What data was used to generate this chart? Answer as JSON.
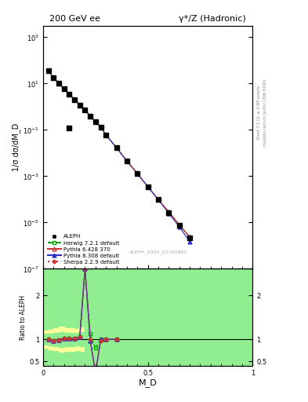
{
  "title_left": "200 GeV ee",
  "title_right": "γ*/Z (Hadronic)",
  "xlabel": "M_D",
  "ylabel_main": "1/σ dσ/dM_D",
  "ylabel_ratio": "Ratio to ALEPH",
  "watermark": "ALEPH_2004_S5765862",
  "right_label": "Rivet 3.1.10, ≥ 2.4M events",
  "right_label2": "mcplots.cern.ch [arXiv:1306.3436]",
  "aleph_x": [
    0.025,
    0.05,
    0.075,
    0.1,
    0.125,
    0.15,
    0.175,
    0.2,
    0.225,
    0.25,
    0.275,
    0.3,
    0.35,
    0.4,
    0.45,
    0.5,
    0.55,
    0.6,
    0.65,
    0.7
  ],
  "aleph_y": [
    35,
    18,
    10,
    6.0,
    3.5,
    2.0,
    1.2,
    0.7,
    0.4,
    0.22,
    0.13,
    0.06,
    0.017,
    0.0045,
    0.0013,
    0.00035,
    9.5e-05,
    2.7e-05,
    7.5e-06,
    2.1e-06
  ],
  "aleph_outlier_x": [
    0.125
  ],
  "aleph_outlier_y": [
    0.12
  ],
  "herwig_x": [
    0.025,
    0.05,
    0.075,
    0.1,
    0.125,
    0.15,
    0.175,
    0.2,
    0.225,
    0.25,
    0.275,
    0.3,
    0.35,
    0.4,
    0.45,
    0.5,
    0.55,
    0.6,
    0.65,
    0.7
  ],
  "herwig_y": [
    35,
    18,
    10,
    6.0,
    3.5,
    2.0,
    1.2,
    0.7,
    0.4,
    0.22,
    0.13,
    0.06,
    0.017,
    0.0045,
    0.0013,
    0.00035,
    9.5e-05,
    2.8e-05,
    7.8e-06,
    2.3e-06
  ],
  "pythia6_x": [
    0.025,
    0.05,
    0.075,
    0.1,
    0.125,
    0.15,
    0.175,
    0.2,
    0.225,
    0.25,
    0.275,
    0.3,
    0.35,
    0.4,
    0.45,
    0.5,
    0.55,
    0.6,
    0.65,
    0.7
  ],
  "pythia6_y": [
    35,
    18,
    10,
    6.0,
    3.5,
    2.0,
    1.2,
    0.7,
    0.4,
    0.22,
    0.13,
    0.06,
    0.017,
    0.0045,
    0.0013,
    0.00035,
    9.5e-05,
    2.9e-05,
    8e-06,
    2.4e-06
  ],
  "pythia8_x": [
    0.025,
    0.05,
    0.075,
    0.1,
    0.125,
    0.15,
    0.175,
    0.2,
    0.225,
    0.25,
    0.275,
    0.3,
    0.35,
    0.4,
    0.45,
    0.5,
    0.55,
    0.6,
    0.65,
    0.7
  ],
  "pythia8_y": [
    35,
    18,
    10,
    6.0,
    3.5,
    2.0,
    1.2,
    0.7,
    0.4,
    0.22,
    0.13,
    0.06,
    0.017,
    0.0045,
    0.0013,
    0.00035,
    9.5e-05,
    2.5e-05,
    6.5e-06,
    1.5e-06
  ],
  "sherpa_x": [
    0.025,
    0.05,
    0.075,
    0.1,
    0.125,
    0.15,
    0.175,
    0.2,
    0.225,
    0.25,
    0.275,
    0.3,
    0.35,
    0.4,
    0.45,
    0.5,
    0.55,
    0.6,
    0.65,
    0.7
  ],
  "sherpa_y": [
    35,
    18,
    10,
    6.0,
    3.5,
    2.0,
    1.2,
    0.7,
    0.4,
    0.22,
    0.13,
    0.06,
    0.017,
    0.0045,
    0.0013,
    0.00035,
    9.5e-05,
    2.8e-05,
    7.8e-06,
    2.3e-06
  ],
  "ratio_x": [
    0.025,
    0.05,
    0.075,
    0.1,
    0.125,
    0.15,
    0.175,
    0.2,
    0.225,
    0.25,
    0.275,
    0.3,
    0.35
  ],
  "herwig_ratio": [
    1.0,
    0.97,
    0.99,
    1.03,
    1.02,
    1.03,
    1.05,
    2.85,
    1.12,
    0.8,
    1.0,
    1.0,
    1.0
  ],
  "pythia6_ratio": [
    1.0,
    0.97,
    0.99,
    1.03,
    1.02,
    1.03,
    1.05,
    2.9,
    0.97,
    0.0,
    1.0,
    1.0,
    1.0
  ],
  "pythia8_ratio": [
    1.0,
    0.97,
    0.99,
    1.03,
    1.02,
    1.03,
    1.05,
    2.9,
    0.97,
    0.0,
    1.0,
    1.0,
    1.0
  ],
  "sherpa_ratio": [
    1.0,
    0.97,
    0.99,
    1.03,
    1.02,
    1.03,
    1.05,
    2.9,
    1.0,
    0.0,
    0.96,
    1.0,
    1.0
  ],
  "ylim_main": [
    1e-07,
    3000.0
  ],
  "ylim_ratio": [
    0.4,
    2.6
  ],
  "xlim": [
    0.0,
    1.0
  ],
  "color_aleph": "#000000",
  "color_herwig": "#00aa00",
  "color_pythia6": "#cc3333",
  "color_pythia8": "#3333cc",
  "color_sherpa": "#cc3333",
  "color_green_band": "#90ee90",
  "color_yellow_band": "#ffff99",
  "bg_ratio": "#90ee90"
}
